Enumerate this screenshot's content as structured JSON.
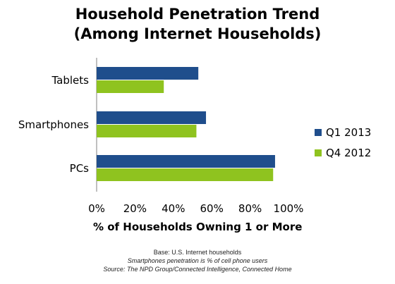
{
  "chart_data": {
    "type": "bar",
    "orientation": "horizontal",
    "title": "Household Penetration Trend",
    "subtitle": "(Among Internet Households)",
    "categories": [
      "Tablets",
      "Smartphones",
      "PCs"
    ],
    "series": [
      {
        "name": "Q1 2013",
        "color": "#1f4e8c",
        "values": [
          53,
          57,
          93
        ]
      },
      {
        "name": "Q4 2012",
        "color": "#8fc31f",
        "values": [
          35,
          52,
          92
        ]
      }
    ],
    "xlabel": "% of Households Owning 1 or More",
    "xlim": [
      0,
      100
    ],
    "xticks": [
      "0%",
      "20%",
      "40%",
      "60%",
      "80%",
      "100%"
    ],
    "grid": false,
    "legend_position": "right"
  },
  "footnotes": [
    "Base: U.S. Internet households",
    "Smartphones penetration is % of cell phone users",
    "Source: The NPD Group/Connected Intelligence, Connected Home"
  ]
}
